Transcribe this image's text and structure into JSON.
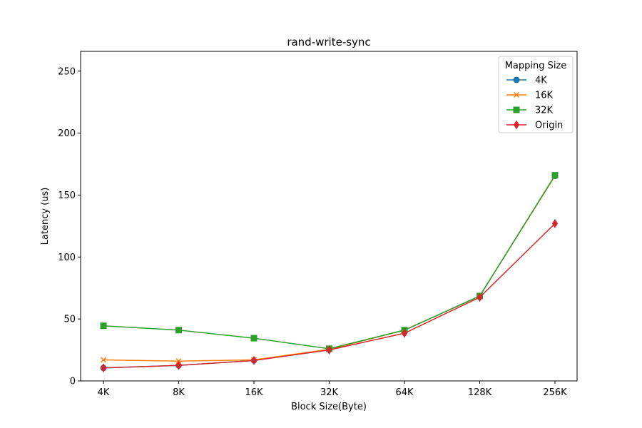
{
  "chart_data": {
    "type": "line",
    "title": "rand-write-sync",
    "xlabel": "Block Size(Byte)",
    "ylabel": "Latency (us)",
    "categories": [
      "4K",
      "8K",
      "16K",
      "32K",
      "64K",
      "128K",
      "256K"
    ],
    "ylim": [
      0,
      266
    ],
    "yticks": [
      0,
      50,
      100,
      150,
      200,
      250
    ],
    "grid": false,
    "legend": {
      "title": "Mapping Size",
      "placement": "top-right"
    },
    "series": [
      {
        "name": "4K",
        "marker": "circle",
        "color": "#1f77b4",
        "values": [
          10.5,
          12.5,
          16.5,
          25.5,
          41,
          68.5,
          165.5
        ]
      },
      {
        "name": "16K",
        "marker": "x",
        "color": "#ff7f0e",
        "values": [
          17,
          16,
          17,
          25.5,
          41,
          68.5,
          165.5
        ]
      },
      {
        "name": "32K",
        "marker": "square",
        "color": "#2ca02c",
        "values": [
          44.5,
          41,
          34.5,
          26,
          41,
          68.5,
          166
        ]
      },
      {
        "name": "Origin",
        "marker": "diamond",
        "color": "#d62728",
        "values": [
          10.5,
          12.5,
          16.5,
          25,
          38.5,
          67.5,
          127
        ]
      }
    ]
  }
}
